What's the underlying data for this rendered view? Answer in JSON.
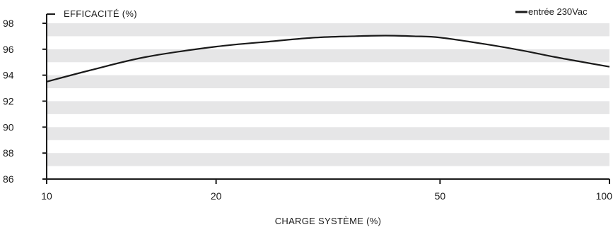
{
  "chart_data": {
    "type": "line",
    "title": "",
    "ylabel": "EFFICACITÉ (%)",
    "xlabel": "CHARGE SYSTÈME (%)",
    "ylim": [
      86,
      98
    ],
    "x_ticks": [
      10,
      20,
      50,
      100
    ],
    "y_ticks": [
      86,
      88,
      90,
      92,
      94,
      96,
      98
    ],
    "x_scale": "log",
    "grid": "horizontal alternating bands",
    "legend_position": "top-right",
    "series": [
      {
        "name": "entrée 230Vac",
        "color": "#1a1a1a",
        "x": [
          10,
          12,
          15,
          20,
          25,
          30,
          35,
          40,
          45,
          50,
          60,
          70,
          80,
          90,
          100
        ],
        "y": [
          93.5,
          94.4,
          95.4,
          96.2,
          96.6,
          96.9,
          97.0,
          97.05,
          97.0,
          96.9,
          96.4,
          95.9,
          95.4,
          95.0,
          94.65
        ]
      }
    ]
  },
  "colors": {
    "band": "#e6e6e7",
    "axis": "#1a1a1a"
  }
}
